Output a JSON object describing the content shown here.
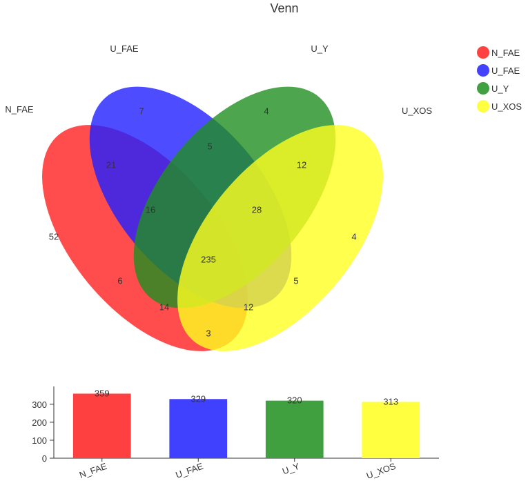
{
  "chart_data": [
    {
      "type": "venn",
      "title": "Venn",
      "sets": [
        {
          "name": "N_FAE",
          "color": "#ff2020"
        },
        {
          "name": "U_FAE",
          "color": "#2020ff"
        },
        {
          "name": "U_Y",
          "color": "#208f20"
        },
        {
          "name": "U_XOS",
          "color": "#ffff20"
        }
      ],
      "regions": [
        {
          "sets": [
            "N_FAE"
          ],
          "value": 52
        },
        {
          "sets": [
            "U_FAE"
          ],
          "value": 7
        },
        {
          "sets": [
            "U_Y"
          ],
          "value": 4
        },
        {
          "sets": [
            "U_XOS"
          ],
          "value": 4
        },
        {
          "sets": [
            "N_FAE",
            "U_FAE"
          ],
          "value": 21
        },
        {
          "sets": [
            "U_FAE",
            "U_Y"
          ],
          "value": 5
        },
        {
          "sets": [
            "U_Y",
            "U_XOS"
          ],
          "value": 12
        },
        {
          "sets": [
            "N_FAE",
            "U_Y"
          ],
          "value": 6
        },
        {
          "sets": [
            "U_FAE",
            "U_XOS"
          ],
          "value": 5
        },
        {
          "sets": [
            "N_FAE",
            "U_XOS"
          ],
          "value": 3
        },
        {
          "sets": [
            "N_FAE",
            "U_FAE",
            "U_Y"
          ],
          "value": 16
        },
        {
          "sets": [
            "U_FAE",
            "U_Y",
            "U_XOS"
          ],
          "value": 28
        },
        {
          "sets": [
            "N_FAE",
            "U_Y",
            "U_XOS"
          ],
          "value": 14
        },
        {
          "sets": [
            "N_FAE",
            "U_FAE",
            "U_XOS"
          ],
          "value": 12
        },
        {
          "sets": [
            "N_FAE",
            "U_FAE",
            "U_Y",
            "U_XOS"
          ],
          "value": 235
        }
      ],
      "legend_placement": "top-right"
    },
    {
      "type": "bar",
      "categories": [
        "N_FAE",
        "U_FAE",
        "U_Y",
        "U_XOS"
      ],
      "values": [
        359,
        329,
        320,
        313
      ],
      "colors": [
        "#ff4040",
        "#4040ff",
        "#40a040",
        "#ffff40"
      ],
      "ylim": [
        0,
        380
      ],
      "yticks": [
        0,
        100,
        200,
        300
      ],
      "grid": false
    }
  ]
}
